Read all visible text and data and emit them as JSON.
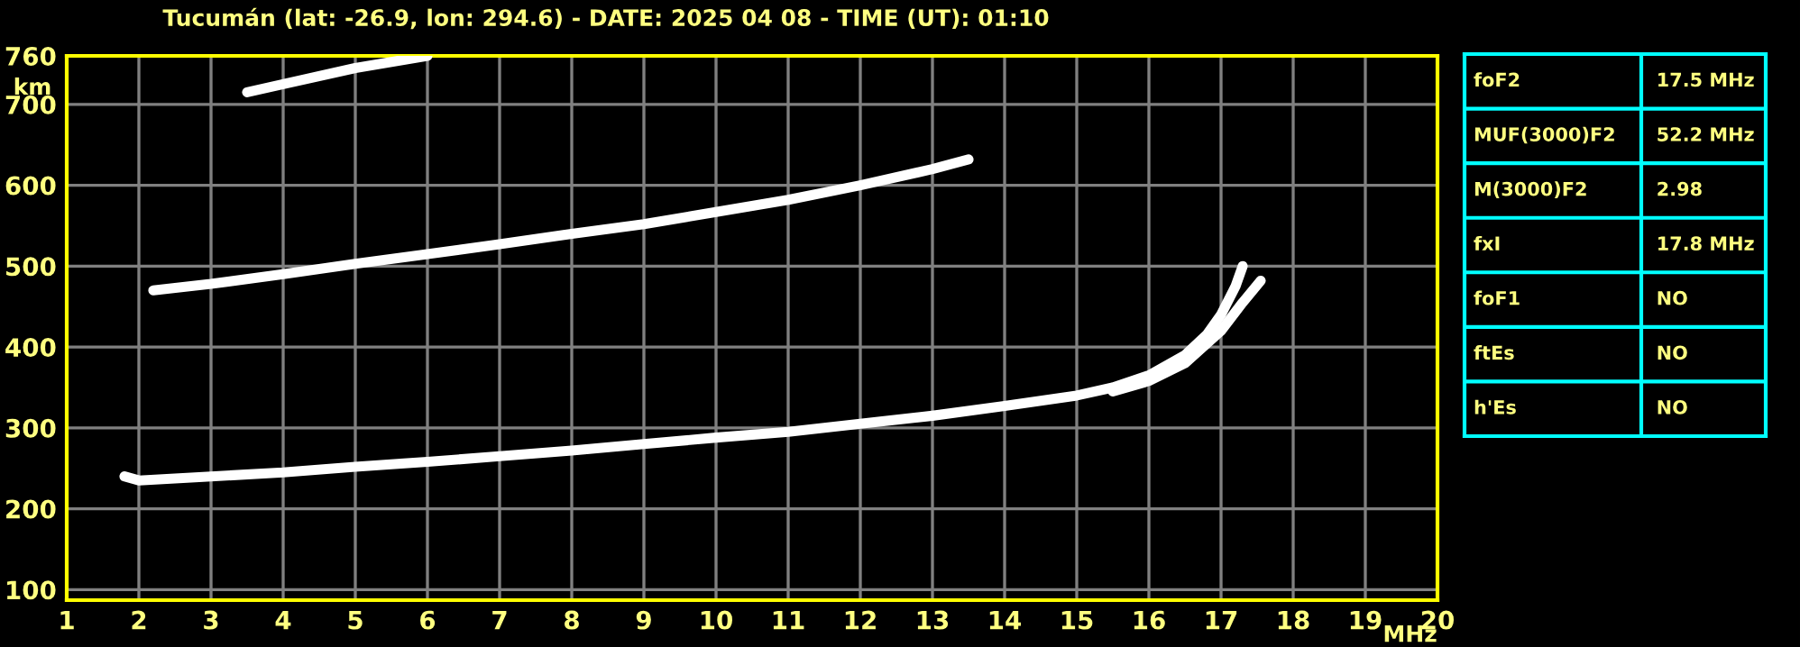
{
  "chart_data": [
    {
      "type": "line",
      "title": "Tucumán (lat: -26.9, lon: 294.6) - DATE: 2025 04 08 - TIME (UT): 01:10",
      "xlabel": "MHz",
      "ylabel": "km",
      "xlim": [
        1,
        20
      ],
      "ylim": [
        87,
        760
      ],
      "xticks": [
        1,
        2,
        3,
        4,
        5,
        6,
        7,
        8,
        9,
        10,
        11,
        12,
        13,
        14,
        15,
        16,
        17,
        18,
        19,
        20
      ],
      "yticks": [
        100,
        200,
        300,
        400,
        500,
        600,
        700,
        760
      ],
      "grid": true,
      "marker": "none",
      "line_style": "solid",
      "series": [
        {
          "color": "#ffffff",
          "x": [
            1.8,
            2,
            3,
            4,
            5,
            6,
            7,
            8,
            9,
            10,
            11,
            12,
            13,
            14,
            15,
            15.5,
            16,
            16.5,
            16.8,
            17,
            17.2,
            17.3
          ],
          "values": [
            240,
            235,
            240,
            245,
            252,
            258,
            265,
            272,
            280,
            288,
            295,
            305,
            315,
            327,
            340,
            350,
            365,
            390,
            415,
            440,
            475,
            500
          ]
        },
        {
          "color": "#ffffff",
          "x": [
            15.5,
            16,
            16.5,
            17,
            17.3,
            17.55
          ],
          "values": [
            345,
            358,
            380,
            420,
            455,
            482
          ]
        },
        {
          "color": "#ffffff",
          "x": [
            2.2,
            3,
            4,
            5,
            6,
            7,
            8,
            9,
            10,
            11,
            12,
            13,
            13.5
          ],
          "values": [
            470,
            478,
            490,
            503,
            515,
            527,
            540,
            552,
            567,
            582,
            600,
            620,
            632
          ]
        },
        {
          "color": "#ffffff",
          "x": [
            3.5,
            4,
            5,
            6
          ],
          "values": [
            715,
            725,
            745,
            760
          ]
        }
      ]
    },
    {
      "type": "other",
      "annotations": [
        "foF2",
        "17.5 MHz",
        "MUF(3000)F2",
        "52.2 MHz",
        "M(3000)F2",
        "2.98",
        "fxI",
        "17.8 MHz",
        "foF1",
        "NO",
        "ftEs",
        "NO",
        "h'Es",
        "NO"
      ]
    }
  ]
}
